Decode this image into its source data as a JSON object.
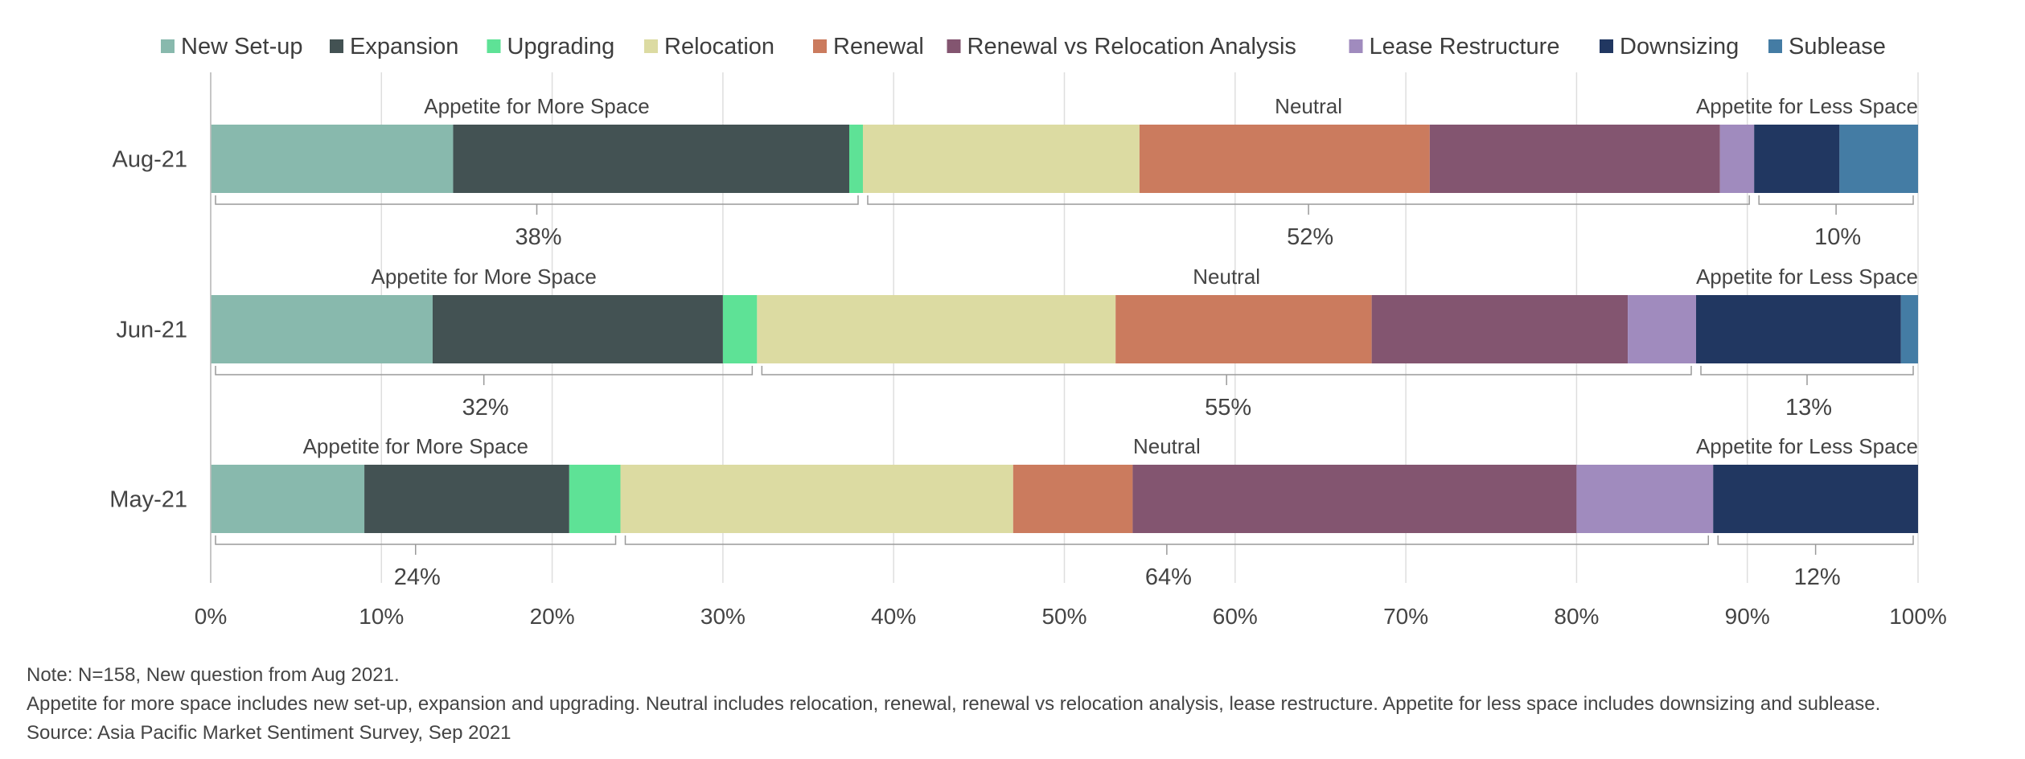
{
  "chart_data": {
    "type": "bar",
    "orientation": "horizontal",
    "stacked": true,
    "categories": [
      "Aug-21",
      "Jun-21",
      "May-21"
    ],
    "series": [
      {
        "name": "New Set-up",
        "color": "#88b9ad",
        "values": [
          14.2,
          13.0,
          9.0
        ]
      },
      {
        "name": "Expansion",
        "color": "#435253",
        "values": [
          23.2,
          17.0,
          12.0
        ]
      },
      {
        "name": "Upgrading",
        "color": "#5ee296",
        "values": [
          0.8,
          2.0,
          3.0
        ]
      },
      {
        "name": "Relocation",
        "color": "#dcdba2",
        "values": [
          16.2,
          21.0,
          23.0
        ]
      },
      {
        "name": "Renewal",
        "color": "#cb7b5e",
        "values": [
          17.0,
          15.0,
          7.0
        ]
      },
      {
        "name": "Renewal vs Relocation Analysis",
        "color": "#835570",
        "values": [
          17.0,
          15.0,
          26.0
        ]
      },
      {
        "name": "Lease Restructure",
        "color": "#a08bbe",
        "values": [
          2.0,
          4.0,
          8.0
        ]
      },
      {
        "name": "Downsizing",
        "color": "#213761",
        "values": [
          5.0,
          12.0,
          12.0
        ]
      },
      {
        "name": "Sublease",
        "color": "#447ca4",
        "values": [
          4.6,
          1.0,
          0.0
        ]
      }
    ],
    "groups": [
      {
        "category": "Aug-21",
        "labels": [
          "Appetite for More Space",
          "Neutral",
          "Appetite for Less Space"
        ],
        "totals": [
          "38%",
          "52%",
          "10%"
        ]
      },
      {
        "category": "Jun-21",
        "labels": [
          "Appetite for More Space",
          "Neutral",
          "Appetite for Less Space"
        ],
        "totals": [
          "32%",
          "55%",
          "13%"
        ]
      },
      {
        "category": "May-21",
        "labels": [
          "Appetite for More Space",
          "Neutral",
          "Appetite for Less Space"
        ],
        "totals": [
          "24%",
          "64%",
          "12%"
        ]
      }
    ],
    "xlim": [
      0,
      100
    ],
    "xticks": [
      "0%",
      "10%",
      "20%",
      "30%",
      "40%",
      "50%",
      "60%",
      "70%",
      "80%",
      "90%",
      "100%"
    ],
    "grid": true,
    "legend": "top"
  },
  "notes": {
    "line1": "Note: N=158, New question from Aug 2021.",
    "line2": "Appetite for more space includes new set-up, expansion and upgrading. Neutral includes relocation, renewal, renewal vs relocation analysis, lease restructure. Appetite for less space includes downsizing and sublease.",
    "line3": "Source: Asia Pacific Market Sentiment Survey, Sep 2021"
  }
}
